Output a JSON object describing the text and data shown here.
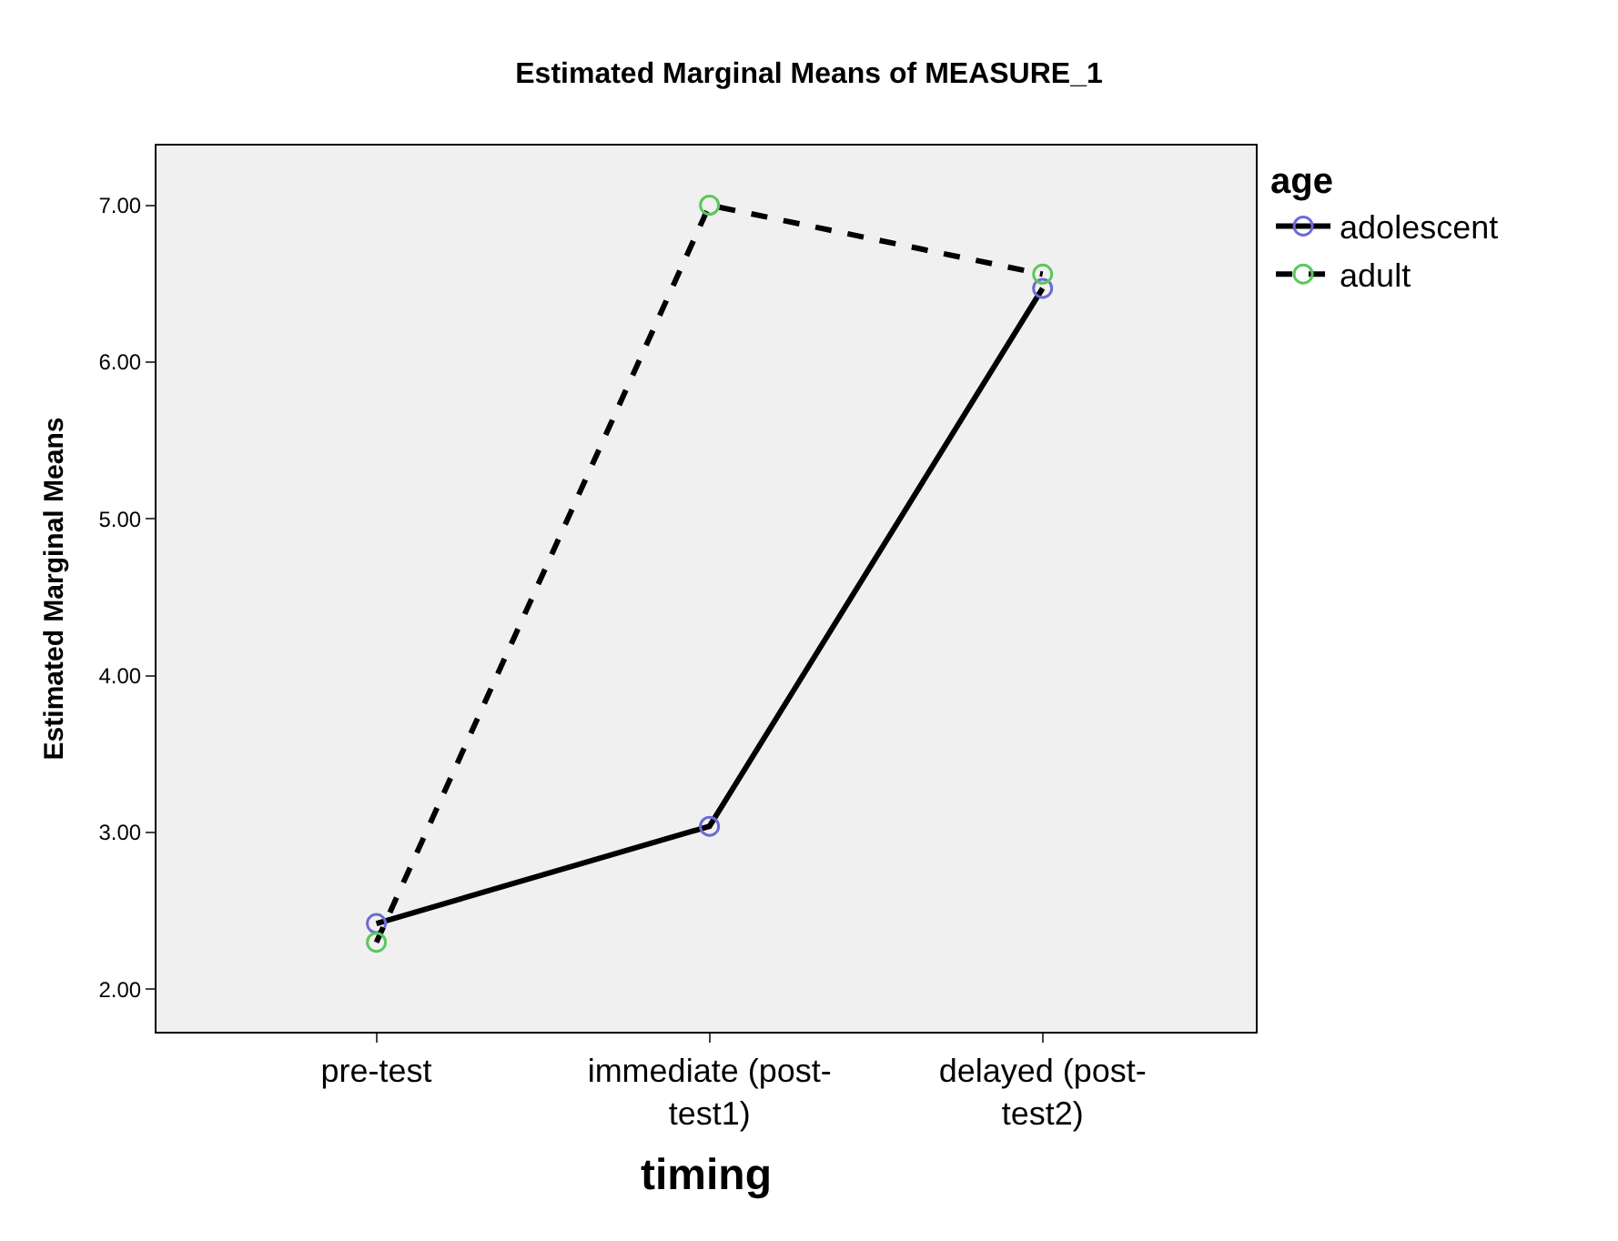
{
  "chart_data": {
    "type": "line",
    "title": "Estimated Marginal Means of MEASURE_1",
    "xlabel": "timing",
    "ylabel": "Estimated Marginal Means",
    "legend_title": "age",
    "categories": [
      "pre-test",
      "immediate (post-test1)",
      "delayed (post-test2)"
    ],
    "series": [
      {
        "name": "adolescent",
        "color": "#000000",
        "colors": [
          "#6b6bd6",
          "#6b6bd6",
          "#6b6bd6"
        ],
        "line_style": "solid",
        "values": [
          2.42,
          3.04,
          6.47
        ]
      },
      {
        "name": "adult",
        "color": "#000000",
        "colors": [
          "#5cc75c",
          "#5cc75c",
          "#5cc75c"
        ],
        "line_style": "dashed",
        "values": [
          2.3,
          7.0,
          6.56
        ]
      }
    ],
    "marker": "circle",
    "ylim": [
      1.73,
      7.38
    ],
    "yticks": [
      {
        "value": 2,
        "label": "2.00"
      },
      {
        "value": 3,
        "label": "3.00"
      },
      {
        "value": 4,
        "label": "4.00"
      },
      {
        "value": 5,
        "label": "5.00"
      },
      {
        "value": 6,
        "label": "6.00"
      },
      {
        "value": 7,
        "label": "7.00"
      }
    ],
    "grid": false,
    "legend": "top right"
  }
}
